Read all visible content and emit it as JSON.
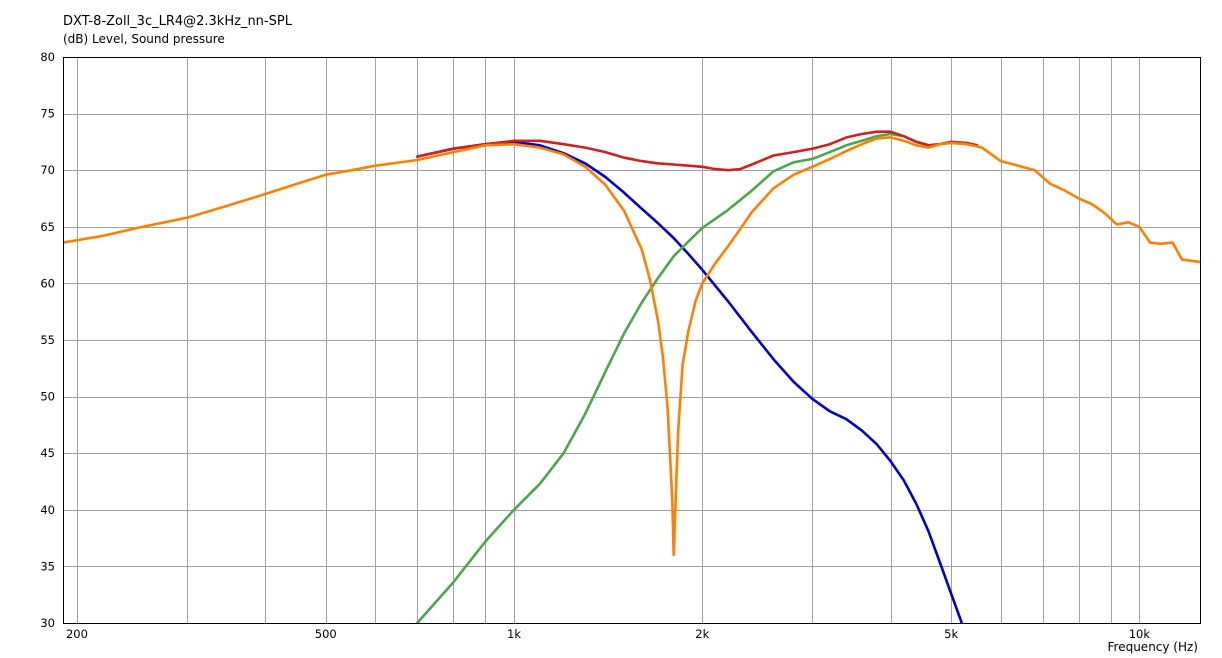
{
  "chart_data": {
    "type": "line",
    "title": "DXT-8-Zoll_3c_LR4@2.3kHz_nn-SPL",
    "ylabel": "(dB)  Level, Sound pressure",
    "xlabel": "Frequency  (Hz)",
    "x_scale": "log",
    "xlim": [
      190,
      12500
    ],
    "ylim": [
      30,
      80
    ],
    "grid": true,
    "legend": "none",
    "x_ticks": [
      {
        "value": 200,
        "label": "200"
      },
      {
        "value": 500,
        "label": "500"
      },
      {
        "value": 1000,
        "label": "1k"
      },
      {
        "value": 2000,
        "label": "2k"
      },
      {
        "value": 5000,
        "label": "5k"
      },
      {
        "value": 10000,
        "label": "10k"
      }
    ],
    "x_minor_grid": [
      300,
      400,
      600,
      700,
      800,
      900,
      3000,
      4000,
      6000,
      7000,
      8000,
      9000
    ],
    "y_ticks": [
      30,
      35,
      40,
      45,
      50,
      55,
      60,
      65,
      70,
      75,
      80
    ],
    "series": [
      {
        "color": "#0000cc",
        "points": [
          [
            700,
            71.2
          ],
          [
            800,
            71.9
          ],
          [
            900,
            72.3
          ],
          [
            1000,
            72.5
          ],
          [
            1100,
            72.2
          ],
          [
            1200,
            71.5
          ],
          [
            1300,
            70.6
          ],
          [
            1400,
            69.4
          ],
          [
            1500,
            68.0
          ],
          [
            1600,
            66.6
          ],
          [
            1700,
            65.3
          ],
          [
            1800,
            64.0
          ],
          [
            1900,
            62.6
          ],
          [
            2000,
            61.2
          ],
          [
            2200,
            58.4
          ],
          [
            2400,
            55.7
          ],
          [
            2600,
            53.3
          ],
          [
            2800,
            51.3
          ],
          [
            3000,
            49.8
          ],
          [
            3200,
            48.7
          ],
          [
            3400,
            48.0
          ],
          [
            3600,
            47.0
          ],
          [
            3800,
            45.8
          ],
          [
            4000,
            44.3
          ],
          [
            4200,
            42.6
          ],
          [
            4400,
            40.5
          ],
          [
            4600,
            38.1
          ],
          [
            4800,
            35.3
          ],
          [
            5000,
            32.6
          ],
          [
            5200,
            30.0
          ]
        ]
      },
      {
        "color": "#4ca64c",
        "points": [
          [
            700,
            30.0
          ],
          [
            800,
            33.6
          ],
          [
            900,
            37.2
          ],
          [
            1000,
            40.0
          ],
          [
            1100,
            42.3
          ],
          [
            1200,
            45.0
          ],
          [
            1300,
            48.5
          ],
          [
            1400,
            52.2
          ],
          [
            1500,
            55.6
          ],
          [
            1600,
            58.3
          ],
          [
            1700,
            60.5
          ],
          [
            1800,
            62.4
          ],
          [
            1900,
            63.7
          ],
          [
            2000,
            64.9
          ],
          [
            2200,
            66.5
          ],
          [
            2400,
            68.2
          ],
          [
            2600,
            69.9
          ],
          [
            2800,
            70.7
          ],
          [
            3000,
            71.0
          ],
          [
            3200,
            71.6
          ],
          [
            3400,
            72.2
          ],
          [
            3600,
            72.6
          ],
          [
            3800,
            73.0
          ],
          [
            4000,
            73.2
          ],
          [
            4200,
            73.0
          ],
          [
            4400,
            72.5
          ],
          [
            4600,
            72.2
          ],
          [
            4800,
            72.3
          ],
          [
            5000,
            72.5
          ],
          [
            5300,
            72.4
          ],
          [
            5500,
            72.2
          ]
        ]
      },
      {
        "color": "#cc2222",
        "points": [
          [
            700,
            71.2
          ],
          [
            800,
            71.9
          ],
          [
            900,
            72.3
          ],
          [
            1000,
            72.6
          ],
          [
            1100,
            72.6
          ],
          [
            1200,
            72.3
          ],
          [
            1300,
            72.0
          ],
          [
            1400,
            71.6
          ],
          [
            1500,
            71.1
          ],
          [
            1600,
            70.8
          ],
          [
            1700,
            70.6
          ],
          [
            1800,
            70.5
          ],
          [
            1900,
            70.4
          ],
          [
            2000,
            70.3
          ],
          [
            2100,
            70.1
          ],
          [
            2200,
            70.0
          ],
          [
            2300,
            70.1
          ],
          [
            2400,
            70.5
          ],
          [
            2600,
            71.3
          ],
          [
            2800,
            71.6
          ],
          [
            3000,
            71.9
          ],
          [
            3200,
            72.3
          ],
          [
            3400,
            72.9
          ],
          [
            3600,
            73.2
          ],
          [
            3800,
            73.4
          ],
          [
            4000,
            73.4
          ],
          [
            4200,
            73.0
          ],
          [
            4400,
            72.5
          ],
          [
            4600,
            72.2
          ],
          [
            4800,
            72.3
          ],
          [
            5000,
            72.5
          ],
          [
            5300,
            72.4
          ],
          [
            5500,
            72.2
          ]
        ]
      },
      {
        "color": "#ff8000",
        "points": [
          [
            190,
            63.6
          ],
          [
            220,
            64.2
          ],
          [
            250,
            64.9
          ],
          [
            300,
            65.8
          ],
          [
            350,
            66.9
          ],
          [
            400,
            67.9
          ],
          [
            450,
            68.8
          ],
          [
            500,
            69.6
          ],
          [
            550,
            70.0
          ],
          [
            600,
            70.4
          ],
          [
            700,
            70.9
          ],
          [
            800,
            71.6
          ],
          [
            900,
            72.2
          ],
          [
            1000,
            72.3
          ],
          [
            1100,
            72.0
          ],
          [
            1200,
            71.4
          ],
          [
            1300,
            70.3
          ],
          [
            1400,
            68.7
          ],
          [
            1500,
            66.4
          ],
          [
            1600,
            63.0
          ],
          [
            1650,
            60.3
          ],
          [
            1700,
            56.6
          ],
          [
            1730,
            53.5
          ],
          [
            1760,
            49.0
          ],
          [
            1790,
            41.0
          ],
          [
            1800,
            36.0
          ],
          [
            1815,
            41.5
          ],
          [
            1830,
            47.0
          ],
          [
            1860,
            52.8
          ],
          [
            1900,
            55.8
          ],
          [
            1950,
            58.4
          ],
          [
            2000,
            60.0
          ],
          [
            2100,
            61.8
          ],
          [
            2200,
            63.3
          ],
          [
            2300,
            64.8
          ],
          [
            2400,
            66.3
          ],
          [
            2600,
            68.4
          ],
          [
            2800,
            69.6
          ],
          [
            3000,
            70.3
          ],
          [
            3200,
            71.0
          ],
          [
            3400,
            71.7
          ],
          [
            3600,
            72.3
          ],
          [
            3800,
            72.8
          ],
          [
            4000,
            72.9
          ],
          [
            4200,
            72.6
          ],
          [
            4400,
            72.2
          ],
          [
            4600,
            72.0
          ],
          [
            4800,
            72.3
          ],
          [
            5000,
            72.4
          ],
          [
            5300,
            72.3
          ],
          [
            5600,
            72.0
          ],
          [
            6000,
            70.8
          ],
          [
            6400,
            70.4
          ],
          [
            6800,
            70.0
          ],
          [
            7200,
            68.8
          ],
          [
            7600,
            68.2
          ],
          [
            8000,
            67.5
          ],
          [
            8400,
            67.0
          ],
          [
            8800,
            66.2
          ],
          [
            9200,
            65.2
          ],
          [
            9600,
            65.4
          ],
          [
            10000,
            65.0
          ],
          [
            10400,
            63.6
          ],
          [
            10800,
            63.5
          ],
          [
            11300,
            63.6
          ],
          [
            11700,
            62.1
          ],
          [
            12500,
            61.9
          ]
        ]
      }
    ]
  }
}
